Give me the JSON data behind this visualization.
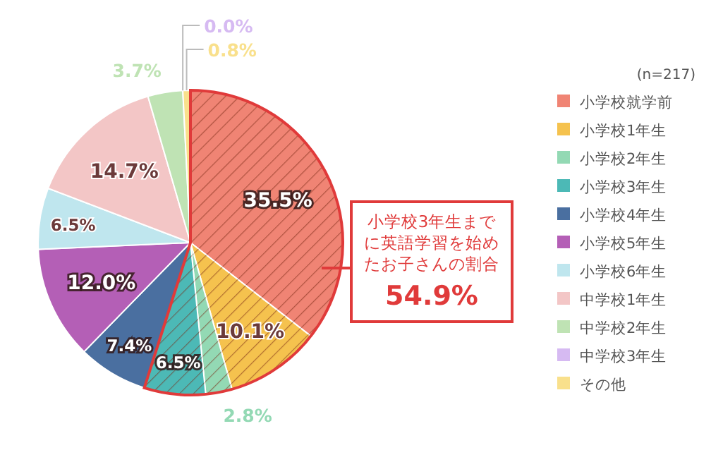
{
  "chart_data": {
    "type": "pie",
    "categories": [
      "小学校就学前",
      "小学校1年生",
      "小学校2年生",
      "小学校3年生",
      "小学校4年生",
      "小学校5年生",
      "小学校6年生",
      "中学校1年生",
      "中学校2年生",
      "中学校3年生",
      "その他"
    ],
    "values": [
      35.5,
      10.1,
      2.8,
      6.5,
      7.4,
      12.0,
      6.5,
      14.7,
      3.7,
      0.0,
      0.8
    ],
    "colors": [
      "#f08474",
      "#f5c24e",
      "#93d9b4",
      "#4cb9b6",
      "#4a6fa0",
      "#b45fb6",
      "#bfe6ee",
      "#f3c6c6",
      "#bfe3b4",
      "#d6baf2",
      "#f9e08c"
    ],
    "value_labels": [
      "35.5%",
      "10.1%",
      "2.8%",
      "6.5%",
      "7.4%",
      "12.0%",
      "6.5%",
      "14.7%",
      "3.7%",
      "0.0%",
      "0.8%"
    ],
    "legend": "right",
    "annotations": [
      "(n=217)",
      "小学校3年生までに英語学習を始めたお子さんの割合",
      "54.9%"
    ]
  }
}
